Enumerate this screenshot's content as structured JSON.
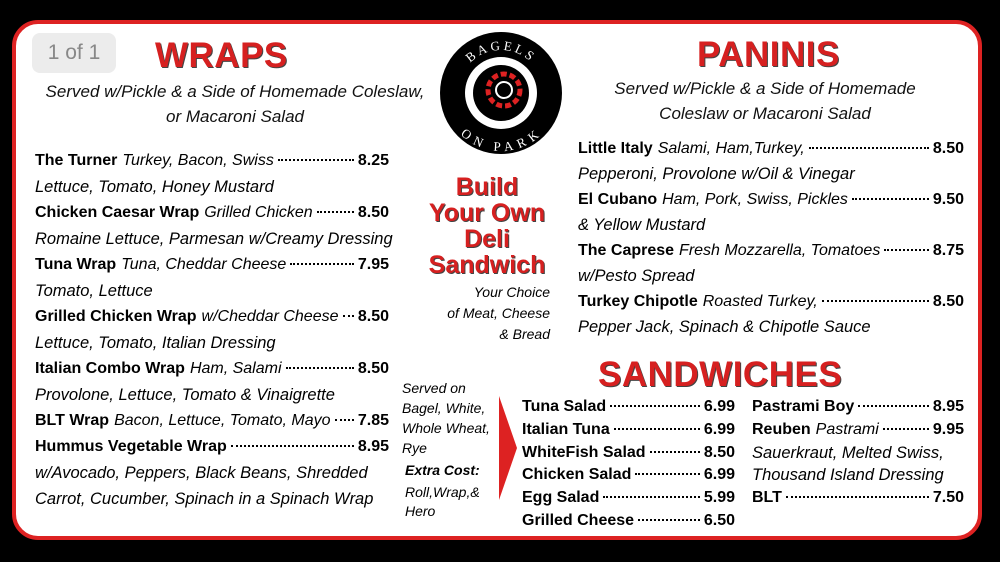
{
  "badge": "1 of 1",
  "logo": {
    "top": "BAGELS",
    "bottom": "ON PARK"
  },
  "wraps": {
    "title": "WRAPS",
    "subtitle": [
      "Served w/Pickle & a Side of Homemade Coleslaw,",
      "or Macaroni Salad"
    ],
    "items": [
      {
        "name": "The Turner",
        "desc": "Turkey, Bacon, Swiss",
        "price": "8.25",
        "details": [
          "Lettuce, Tomato, Honey Mustard"
        ]
      },
      {
        "name": "Chicken Caesar Wrap",
        "desc": "Grilled Chicken",
        "price": "8.50",
        "details": [
          "Romaine Lettuce, Parmesan w/Creamy Dressing"
        ]
      },
      {
        "name": "Tuna Wrap",
        "desc": "Tuna, Cheddar Cheese",
        "price": "7.95",
        "details": [
          "Tomato, Lettuce"
        ]
      },
      {
        "name": "Grilled Chicken Wrap",
        "desc": "w/Cheddar Cheese",
        "price": "8.50",
        "details": [
          "Lettuce, Tomato, Italian Dressing"
        ]
      },
      {
        "name": "Italian Combo Wrap",
        "desc": "Ham, Salami",
        "price": "8.50",
        "details": [
          "Provolone, Lettuce, Tomato & Vinaigrette"
        ]
      },
      {
        "name": "BLT Wrap",
        "desc": "Bacon, Lettuce, Tomato, Mayo",
        "price": "7.85"
      },
      {
        "name": "Hummus Vegetable Wrap",
        "price": "8.95",
        "details": [
          "w/Avocado, Peppers, Black Beans, Shredded",
          "Carrot, Cucumber, Spinach in a Spinach Wrap"
        ]
      }
    ]
  },
  "build": {
    "title": [
      "Build",
      "Your Own",
      "Deli",
      "Sandwich"
    ],
    "choice": [
      "Your Choice",
      "of Meat, Cheese",
      "& Bread"
    ],
    "served": [
      "Served on",
      "Bagel, White,",
      "Whole Wheat,",
      "Rye"
    ],
    "extra_label": "Extra Cost:",
    "extra": [
      "Roll,Wrap,&",
      "Hero"
    ]
  },
  "paninis": {
    "title": "PANINIS",
    "subtitle": [
      "Served w/Pickle & a Side of Homemade",
      "Coleslaw or Macaroni Salad"
    ],
    "items": [
      {
        "name": "Little Italy",
        "desc": "Salami, Ham,Turkey,",
        "price": "8.50",
        "details": [
          "Pepperoni, Provolone w/Oil & Vinegar"
        ]
      },
      {
        "name": "El Cubano",
        "desc": "Ham, Pork, Swiss, Pickles",
        "price": "9.50",
        "details": [
          "& Yellow Mustard"
        ]
      },
      {
        "name": "The Caprese",
        "desc": "Fresh Mozzarella, Tomatoes",
        "price": "8.75",
        "details": [
          "w/Pesto Spread"
        ]
      },
      {
        "name": "Turkey Chipotle",
        "desc": "Roasted Turkey,",
        "price": "8.50",
        "details": [
          "Pepper Jack, Spinach & Chipotle Sauce"
        ]
      }
    ]
  },
  "sandwiches": {
    "title": "SANDWICHES",
    "left": [
      {
        "name": "Tuna Salad",
        "price": "6.99"
      },
      {
        "name": "Italian Tuna",
        "price": "6.99"
      },
      {
        "name": "WhiteFish Salad",
        "price": "8.50"
      },
      {
        "name": "Chicken Salad",
        "price": "6.99"
      },
      {
        "name": "Egg Salad",
        "price": "5.99"
      },
      {
        "name": "Grilled Cheese",
        "price": "6.50"
      }
    ],
    "right": [
      {
        "name": "Pastrami Boy",
        "price": "8.95"
      },
      {
        "name": "Reuben",
        "desc": "Pastrami",
        "price": "9.95",
        "details": [
          "Sauerkraut, Melted Swiss,",
          "Thousand Island Dressing"
        ]
      },
      {
        "name": "BLT",
        "price": "7.50"
      }
    ]
  }
}
